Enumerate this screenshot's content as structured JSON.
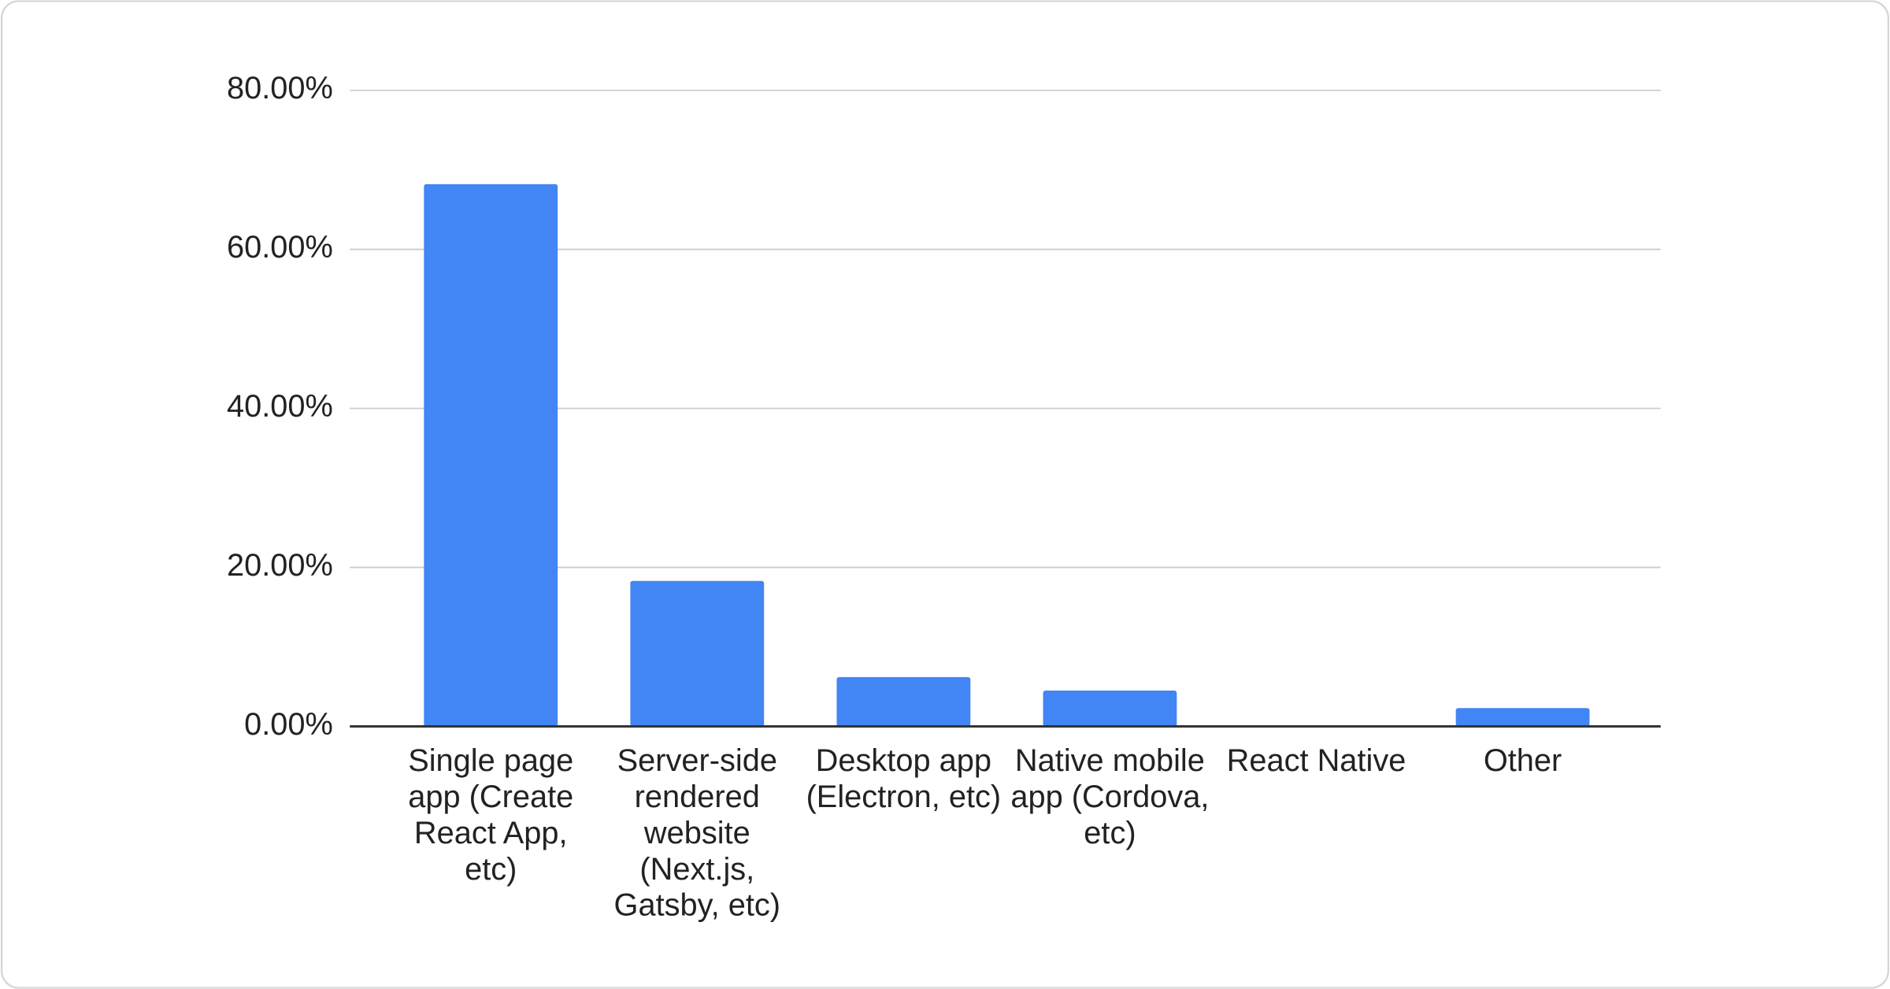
{
  "chart_data": {
    "type": "bar",
    "categories": [
      "Single page app (Create React App, etc)",
      "Server-side rendered website (Next.js, Gatsby, etc)",
      "Desktop app (Electron, etc)",
      "Native mobile app (Cordova, etc)",
      "React Native",
      "Other"
    ],
    "values": [
      68.2,
      18.3,
      6.2,
      4.5,
      0,
      2.3
    ],
    "color": "#4285f4",
    "ylim": [
      0,
      80
    ],
    "yticks": [
      {
        "value": 0,
        "label": "0.00%"
      },
      {
        "value": 20,
        "label": "20.00%"
      },
      {
        "value": 40,
        "label": "40.00%"
      },
      {
        "value": 60,
        "label": "60.00%"
      },
      {
        "value": 80,
        "label": "80.00%"
      }
    ],
    "grid": true
  }
}
